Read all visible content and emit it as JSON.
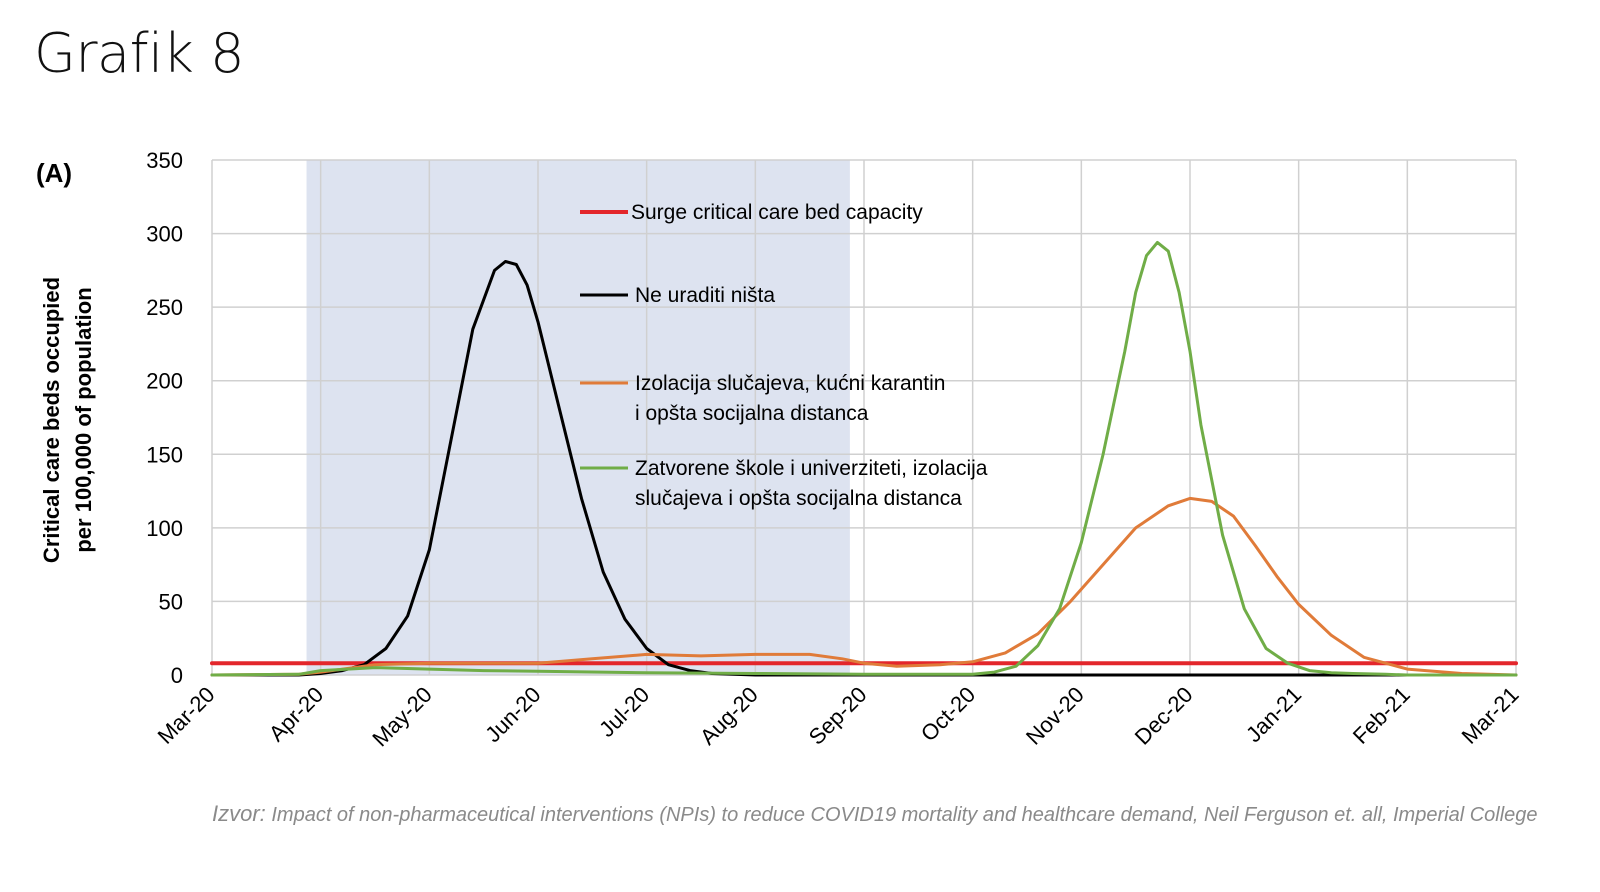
{
  "page": {
    "title": "Grafik 8",
    "panel_label": "(A)",
    "source_prefix": "Izvor:",
    "source_text": " Impact of non-pharmaceutical interventions (NPIs) to reduce COVID19 mortality and healthcare demand, Neil Ferguson et. all, Imperial College"
  },
  "chart_data": {
    "type": "line",
    "ylabel_lines": [
      "Critical care beds occupied",
      "per 100,000 of population"
    ],
    "ylim": [
      0,
      350
    ],
    "yticks": [
      0,
      50,
      100,
      150,
      200,
      250,
      300,
      350
    ],
    "xlim": [
      0,
      12
    ],
    "xtick_labels": [
      "Mar-20",
      "Apr-20",
      "May-20",
      "Jun-20",
      "Jul-20",
      "Aug-20",
      "Sep-20",
      "Oct-20",
      "Nov-20",
      "Dec-20",
      "Jan-21",
      "Feb-21",
      "Mar-21"
    ],
    "grid": true,
    "shaded_period": {
      "start": 0.87,
      "end": 5.87,
      "color": "#dde3f0"
    },
    "legend_placement": "top-center inside plot",
    "series": [
      {
        "name": "Surge critical care bed capacity",
        "legend_lines": [
          "Surge critical care bed capacity"
        ],
        "color": "#e3262b",
        "x": [
          0,
          12
        ],
        "y": [
          8,
          8
        ]
      },
      {
        "name": "Ne uraditi ništa",
        "legend_lines": [
          "Ne uraditi ništa"
        ],
        "color": "#000000",
        "x": [
          0,
          0.8,
          1.0,
          1.2,
          1.4,
          1.6,
          1.8,
          2.0,
          2.2,
          2.4,
          2.6,
          2.7,
          2.8,
          2.9,
          3.0,
          3.2,
          3.4,
          3.6,
          3.8,
          4.0,
          4.2,
          4.4,
          4.6,
          4.8,
          5.0,
          5.5,
          6,
          7,
          8,
          9,
          10,
          11,
          12
        ],
        "y": [
          0,
          0,
          1,
          3,
          7,
          18,
          40,
          85,
          160,
          235,
          275,
          281,
          279,
          265,
          240,
          180,
          120,
          70,
          38,
          18,
          7,
          3,
          1,
          0.5,
          0,
          0,
          0,
          0,
          0,
          0,
          0,
          0,
          0
        ]
      },
      {
        "name": "Izolacija slučajeva, kućni karantin i opšta socijalna distanca",
        "legend_lines": [
          "Izolacija slučajeva, kućni karantin",
          "i opšta socijalna distanca"
        ],
        "color": "#e07b39",
        "x": [
          0,
          0.8,
          1.0,
          1.5,
          2.0,
          2.5,
          3.0,
          3.5,
          4.0,
          4.5,
          5.0,
          5.5,
          5.8,
          6.0,
          6.3,
          6.7,
          7.0,
          7.3,
          7.6,
          7.9,
          8.2,
          8.5,
          8.8,
          9.0,
          9.2,
          9.4,
          9.6,
          9.8,
          10.0,
          10.3,
          10.6,
          11.0,
          11.5,
          12.0
        ],
        "y": [
          0,
          0.5,
          2,
          7,
          8,
          8,
          8,
          11,
          14,
          13,
          14,
          14,
          11,
          8,
          6,
          7,
          9,
          15,
          28,
          50,
          75,
          100,
          115,
          120,
          118,
          108,
          88,
          67,
          48,
          27,
          12,
          4,
          1,
          0
        ]
      },
      {
        "name": "Zatvorene škole i univerziteti, izolacija slučajeva i opšta socijalna distanca",
        "legend_lines": [
          "Zatvorene škole i univerziteti, izolacija",
          "slučajeva i opšta socijalna distanca"
        ],
        "color": "#70ad47",
        "x": [
          0,
          0.8,
          1.0,
          1.5,
          2.0,
          2.5,
          3.0,
          4.0,
          5.0,
          6.0,
          7.0,
          7.2,
          7.4,
          7.6,
          7.8,
          8.0,
          8.2,
          8.4,
          8.5,
          8.6,
          8.7,
          8.8,
          8.9,
          9.0,
          9.1,
          9.3,
          9.5,
          9.7,
          9.9,
          10.1,
          10.3,
          10.5,
          10.8,
          11.0,
          12.0
        ],
        "y": [
          0,
          0.5,
          3,
          5,
          4,
          3,
          2.5,
          1.5,
          1,
          0.5,
          0.5,
          2,
          6,
          20,
          45,
          90,
          150,
          220,
          260,
          285,
          294,
          288,
          260,
          220,
          170,
          95,
          45,
          18,
          8,
          3,
          1.5,
          1,
          0.5,
          0,
          0
        ]
      }
    ]
  }
}
